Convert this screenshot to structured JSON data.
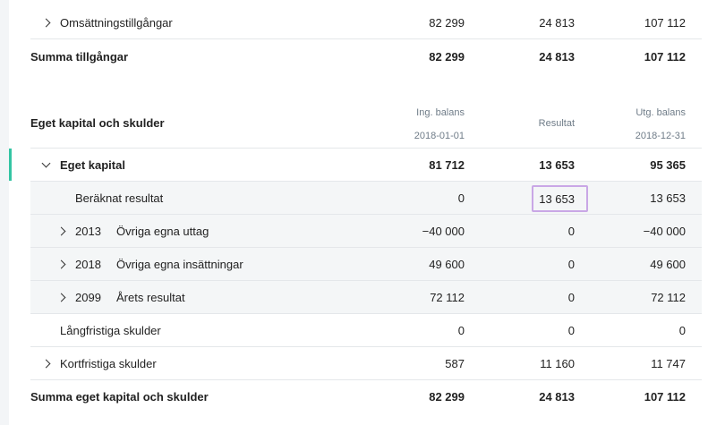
{
  "assets": {
    "current_assets": {
      "label": "Omsättningstillgångar",
      "ing": "82 299",
      "res": "24 813",
      "utg": "107 112"
    },
    "total": {
      "label": "Summa tillgångar",
      "ing": "82 299",
      "res": "24 813",
      "utg": "107 112"
    }
  },
  "equity_section": {
    "title": "Eget kapital och skulder",
    "col_ing_label": "Ing. balans",
    "col_ing_date": "2018-01-01",
    "col_res_label": "Resultat",
    "col_utg_label": "Utg. balans",
    "col_utg_date": "2018-12-31"
  },
  "rows": {
    "eget_kapital": {
      "label": "Eget kapital",
      "ing": "81 712",
      "res": "13 653",
      "utg": "95 365"
    },
    "beraknat": {
      "label": "Beräknat resultat",
      "ing": "0",
      "res": "13 653",
      "utg": "13 653"
    },
    "r2013": {
      "account": "2013",
      "label": "Övriga egna uttag",
      "ing": "−40 000",
      "res": "0",
      "utg": "−40 000"
    },
    "r2018": {
      "account": "2018",
      "label": "Övriga egna insättningar",
      "ing": "49 600",
      "res": "0",
      "utg": "49 600"
    },
    "r2099": {
      "account": "2099",
      "label": "Årets resultat",
      "ing": "72 112",
      "res": "0",
      "utg": "72 112"
    },
    "langfristiga": {
      "label": "Långfristiga skulder",
      "ing": "0",
      "res": "0",
      "utg": "0"
    },
    "kortfristiga": {
      "label": "Kortfristiga skulder",
      "ing": "587",
      "res": "11 160",
      "utg": "11 747"
    },
    "total": {
      "label": "Summa eget kapital och skulder",
      "ing": "82 299",
      "res": "24 813",
      "utg": "107 112"
    }
  },
  "colors": {
    "accent": "#33c4a3",
    "highlight": "#c9a7e6"
  }
}
